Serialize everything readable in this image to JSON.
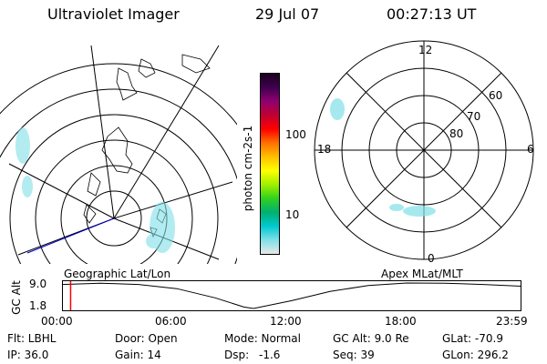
{
  "header": {
    "instrument": "Ultraviolet Imager",
    "date": "29 Jul 07",
    "time": "00:27:13 UT"
  },
  "colorbar": {
    "label": "photon cm-2s-1",
    "ticks": [
      "100",
      "10"
    ],
    "scale": "log",
    "colors": [
      "#e8e8e8",
      "#7fe0e8",
      "#00c8d0",
      "#00b070",
      "#30d020",
      "#a0f000",
      "#ffff00",
      "#ffc000",
      "#ff7000",
      "#ff0000",
      "#c00030",
      "#900070",
      "#400050",
      "#1a0020"
    ]
  },
  "left_panel": {
    "label": "Geographic Lat/Lon"
  },
  "right_panel": {
    "label": "Apex MLat/MLT",
    "mlt_labels": {
      "top": "12",
      "left": "18",
      "right": "6",
      "bottom": "0"
    },
    "lat_labels": [
      "80",
      "70",
      "60"
    ]
  },
  "timeline": {
    "ylabel": "GC Alt",
    "y_ticks": [
      "9.0",
      "1.8"
    ],
    "x_ticks": [
      "00:00",
      "06:00",
      "12:00",
      "18:00",
      "23:59"
    ],
    "current_time_hours": 0.45,
    "marker_color": "#ff0000",
    "altitude_series_hours": [
      0,
      2,
      4,
      6,
      8,
      9.5,
      10,
      12,
      14,
      16,
      18,
      20,
      22,
      23.98
    ],
    "altitude_series_re": [
      8.6,
      8.95,
      8.6,
      7.4,
      4.8,
      2.2,
      1.8,
      4.0,
      6.6,
      8.3,
      9.0,
      8.95,
      8.6,
      8.1
    ]
  },
  "info": {
    "filter": "Flt: LBHL",
    "door": "Door: Open",
    "mode": "Mode: Normal",
    "gc_alt": "GC Alt: 9.0 Re",
    "glat": "GLat: -70.9",
    "ip": "IP: 36.0",
    "gain": "Gain: 14",
    "dsp_label": "Dsp:",
    "dsp_value": "-1.6",
    "seq": "Seq: 39",
    "glon": "GLon: 296.2"
  }
}
